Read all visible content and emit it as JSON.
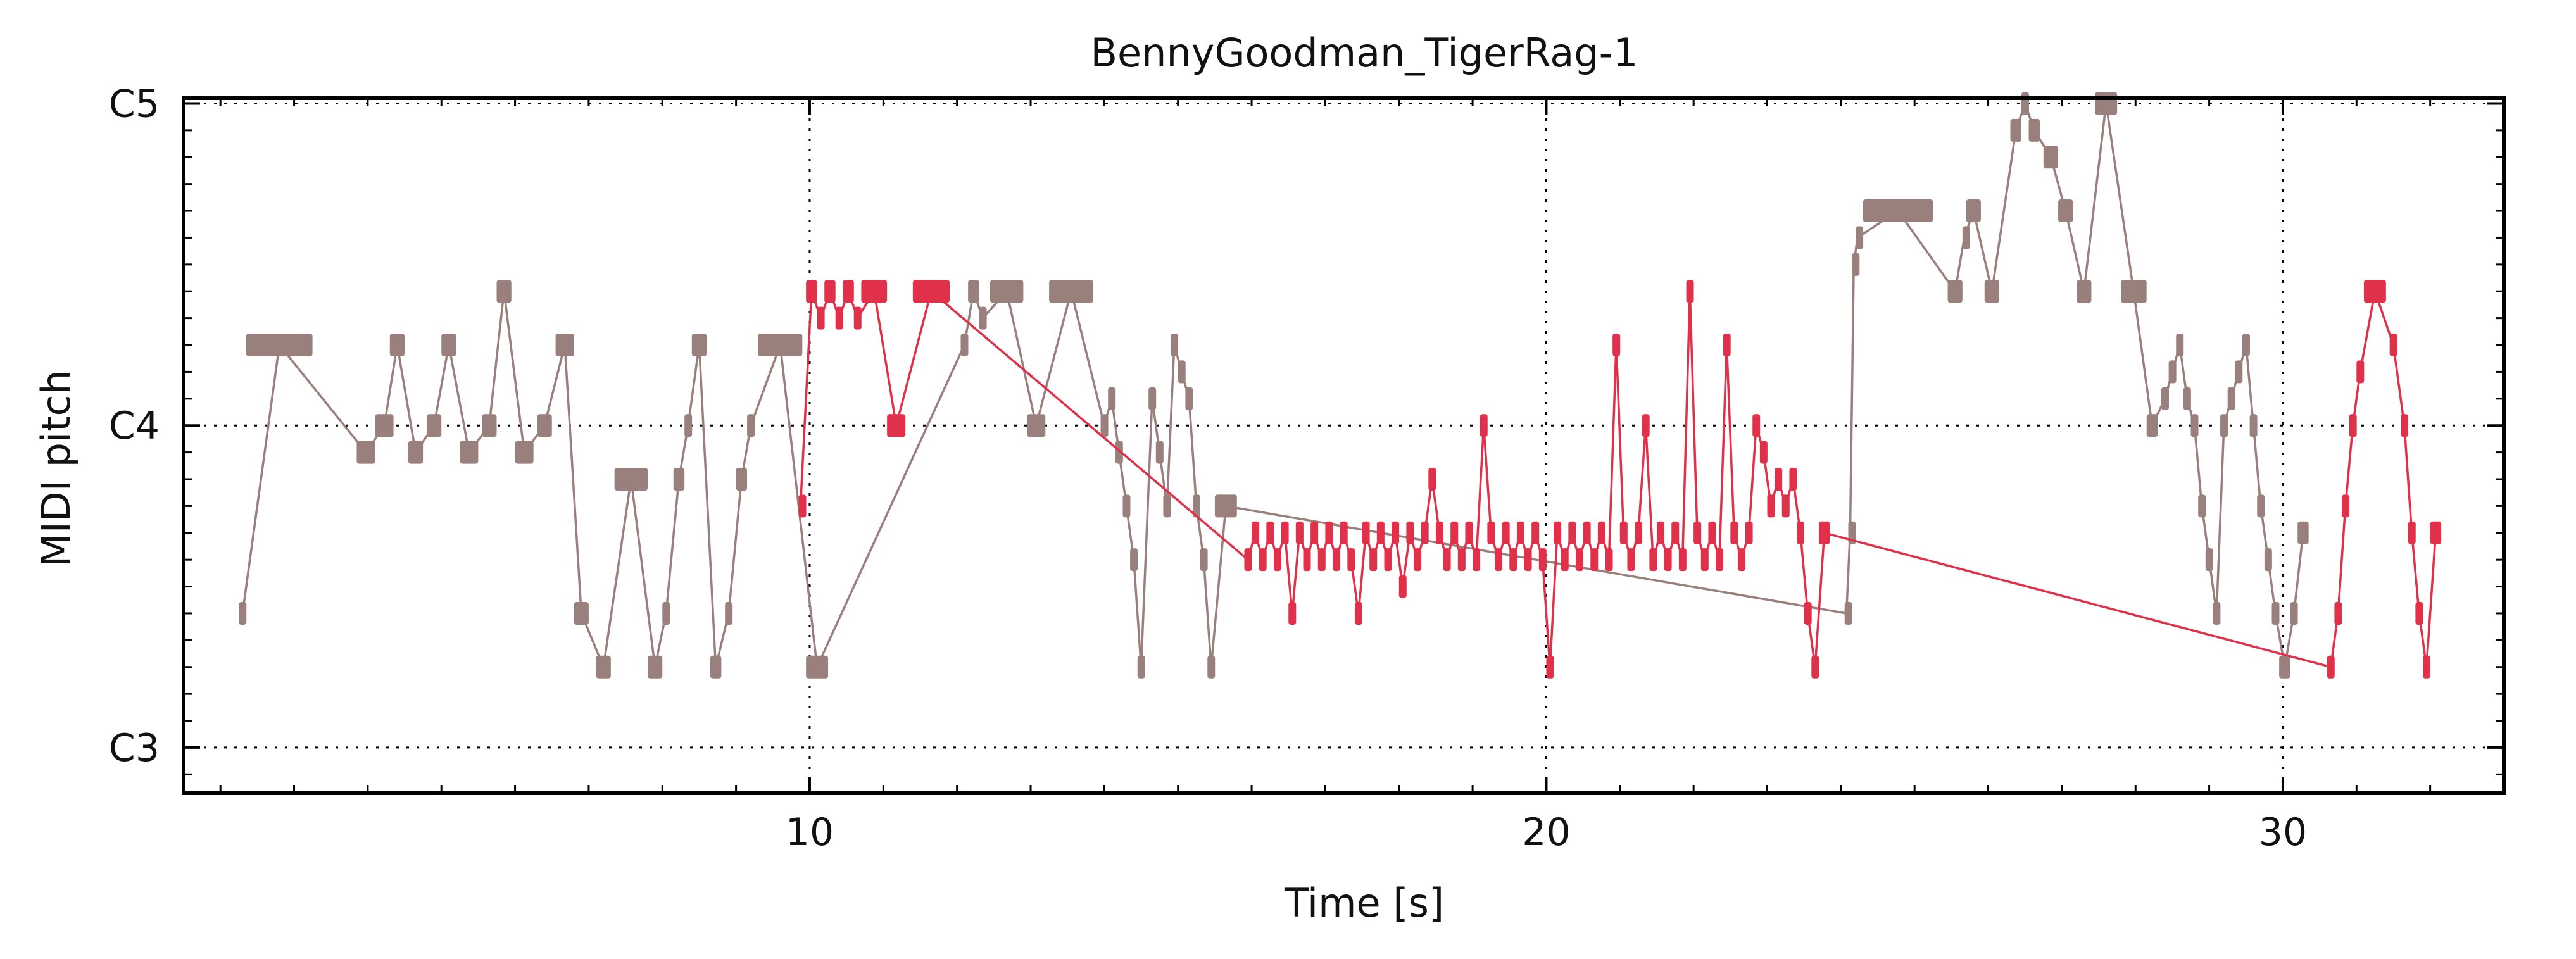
{
  "chart_data": {
    "type": "line",
    "title": "BennyGoodman_TigerRag-1",
    "xlabel": "Time [s]",
    "ylabel": "MIDI pitch",
    "xlim": [
      1.5,
      33.0
    ],
    "ylim": [
      46.3,
      72.2
    ],
    "x_ticks": [
      {
        "value": 10,
        "label": "10"
      },
      {
        "value": 20,
        "label": "20"
      },
      {
        "value": 30,
        "label": "30"
      }
    ],
    "y_ticks": [
      {
        "value": 48,
        "label": "C3"
      },
      {
        "value": 60,
        "label": "C4"
      },
      {
        "value": 72,
        "label": "C5"
      }
    ],
    "grid": true,
    "colors": {
      "series_gray": "#9a807c",
      "series_red": "#e0304a"
    },
    "series": [
      {
        "color": "gray",
        "notes": [
          [
            2.25,
            0.1,
            53
          ],
          [
            2.35,
            0.9,
            63
          ],
          [
            3.85,
            0.25,
            59
          ],
          [
            4.1,
            0.25,
            60
          ],
          [
            4.3,
            0.2,
            63
          ],
          [
            4.55,
            0.2,
            59
          ],
          [
            4.8,
            0.2,
            60
          ],
          [
            5.0,
            0.2,
            63
          ],
          [
            5.25,
            0.25,
            59
          ],
          [
            5.55,
            0.2,
            60
          ],
          [
            5.75,
            0.2,
            65
          ],
          [
            6.0,
            0.25,
            59
          ],
          [
            6.3,
            0.2,
            60
          ],
          [
            6.55,
            0.25,
            63
          ],
          [
            6.8,
            0.2,
            53
          ],
          [
            7.1,
            0.2,
            51
          ],
          [
            7.35,
            0.45,
            58
          ],
          [
            7.8,
            0.2,
            51
          ],
          [
            8.0,
            0.1,
            53
          ],
          [
            8.15,
            0.15,
            58
          ],
          [
            8.3,
            0.1,
            60
          ],
          [
            8.4,
            0.2,
            63
          ],
          [
            8.65,
            0.15,
            51
          ],
          [
            8.85,
            0.1,
            53
          ],
          [
            9.0,
            0.15,
            58
          ],
          [
            9.15,
            0.1,
            60
          ],
          [
            9.3,
            0.6,
            63
          ],
          [
            9.95,
            0.3,
            51
          ],
          [
            12.05,
            0.1,
            63
          ],
          [
            12.15,
            0.15,
            65
          ],
          [
            12.3,
            0.1,
            64
          ],
          [
            12.45,
            0.45,
            65
          ],
          [
            12.95,
            0.25,
            60
          ],
          [
            13.25,
            0.6,
            65
          ],
          [
            13.95,
            0.1,
            60
          ],
          [
            14.05,
            0.1,
            61
          ],
          [
            14.15,
            0.1,
            59
          ],
          [
            14.25,
            0.1,
            57
          ],
          [
            14.35,
            0.1,
            55
          ],
          [
            14.45,
            0.1,
            51
          ],
          [
            14.6,
            0.1,
            61
          ],
          [
            14.7,
            0.1,
            59
          ],
          [
            14.8,
            0.1,
            57
          ],
          [
            14.9,
            0.1,
            63
          ],
          [
            15.0,
            0.1,
            62
          ],
          [
            15.1,
            0.1,
            61
          ],
          [
            15.2,
            0.1,
            57
          ],
          [
            15.3,
            0.1,
            55
          ],
          [
            15.4,
            0.1,
            51
          ],
          [
            15.5,
            0.3,
            57
          ],
          [
            24.05,
            0.05,
            53
          ],
          [
            24.1,
            0.05,
            56
          ],
          [
            24.15,
            0.05,
            66
          ],
          [
            24.2,
            0.05,
            67
          ],
          [
            24.3,
            0.95,
            68
          ],
          [
            25.45,
            0.2,
            65
          ],
          [
            25.65,
            0.05,
            67
          ],
          [
            25.7,
            0.2,
            68
          ],
          [
            25.95,
            0.2,
            65
          ],
          [
            26.3,
            0.15,
            71
          ],
          [
            26.45,
            0.1,
            72
          ],
          [
            26.55,
            0.15,
            71
          ],
          [
            26.75,
            0.2,
            70
          ],
          [
            26.95,
            0.2,
            68
          ],
          [
            27.2,
            0.2,
            65
          ],
          [
            27.45,
            0.3,
            72
          ],
          [
            27.8,
            0.35,
            65
          ],
          [
            28.15,
            0.15,
            60
          ],
          [
            28.35,
            0.1,
            61
          ],
          [
            28.45,
            0.1,
            62
          ],
          [
            28.55,
            0.1,
            63
          ],
          [
            28.65,
            0.1,
            61
          ],
          [
            28.75,
            0.1,
            60
          ],
          [
            28.85,
            0.1,
            57
          ],
          [
            28.95,
            0.1,
            55
          ],
          [
            29.05,
            0.1,
            53
          ],
          [
            29.15,
            0.1,
            60
          ],
          [
            29.25,
            0.1,
            61
          ],
          [
            29.35,
            0.1,
            62
          ],
          [
            29.45,
            0.1,
            63
          ],
          [
            29.55,
            0.1,
            60
          ],
          [
            29.65,
            0.1,
            57
          ],
          [
            29.75,
            0.1,
            55
          ],
          [
            29.85,
            0.1,
            53
          ],
          [
            29.95,
            0.15,
            51
          ],
          [
            30.1,
            0.1,
            53
          ],
          [
            30.2,
            0.15,
            56
          ]
        ]
      },
      {
        "color": "red",
        "notes": [
          [
            9.85,
            0.05,
            57
          ],
          [
            9.95,
            0.15,
            65
          ],
          [
            10.1,
            0.1,
            64
          ],
          [
            10.2,
            0.15,
            65
          ],
          [
            10.35,
            0.1,
            64
          ],
          [
            10.45,
            0.15,
            65
          ],
          [
            10.6,
            0.1,
            64
          ],
          [
            10.7,
            0.35,
            65
          ],
          [
            11.05,
            0.25,
            60
          ],
          [
            11.4,
            0.5,
            65
          ],
          [
            15.9,
            0.1,
            55
          ],
          [
            16.0,
            0.1,
            56
          ],
          [
            16.1,
            0.1,
            55
          ],
          [
            16.2,
            0.1,
            56
          ],
          [
            16.3,
            0.1,
            55
          ],
          [
            16.4,
            0.1,
            56
          ],
          [
            16.5,
            0.1,
            53
          ],
          [
            16.6,
            0.1,
            56
          ],
          [
            16.7,
            0.1,
            55
          ],
          [
            16.8,
            0.1,
            56
          ],
          [
            16.9,
            0.1,
            55
          ],
          [
            17.0,
            0.1,
            56
          ],
          [
            17.1,
            0.1,
            55
          ],
          [
            17.2,
            0.1,
            56
          ],
          [
            17.3,
            0.1,
            55
          ],
          [
            17.4,
            0.1,
            53
          ],
          [
            17.5,
            0.1,
            56
          ],
          [
            17.6,
            0.1,
            55
          ],
          [
            17.7,
            0.1,
            56
          ],
          [
            17.8,
            0.1,
            55
          ],
          [
            17.9,
            0.1,
            56
          ],
          [
            18.0,
            0.1,
            54
          ],
          [
            18.1,
            0.1,
            56
          ],
          [
            18.2,
            0.1,
            55
          ],
          [
            18.3,
            0.1,
            56
          ],
          [
            18.4,
            0.1,
            58
          ],
          [
            18.5,
            0.1,
            56
          ],
          [
            18.6,
            0.1,
            55
          ],
          [
            18.7,
            0.1,
            56
          ],
          [
            18.8,
            0.1,
            55
          ],
          [
            18.9,
            0.1,
            56
          ],
          [
            19.0,
            0.1,
            55
          ],
          [
            19.1,
            0.1,
            60
          ],
          [
            19.2,
            0.1,
            56
          ],
          [
            19.3,
            0.1,
            55
          ],
          [
            19.4,
            0.1,
            56
          ],
          [
            19.5,
            0.1,
            55
          ],
          [
            19.6,
            0.1,
            56
          ],
          [
            19.7,
            0.1,
            55
          ],
          [
            19.8,
            0.1,
            56
          ],
          [
            19.9,
            0.1,
            55
          ],
          [
            20.0,
            0.1,
            51
          ],
          [
            20.1,
            0.1,
            56
          ],
          [
            20.2,
            0.1,
            55
          ],
          [
            20.3,
            0.1,
            56
          ],
          [
            20.4,
            0.1,
            55
          ],
          [
            20.5,
            0.1,
            56
          ],
          [
            20.6,
            0.1,
            55
          ],
          [
            20.7,
            0.1,
            56
          ],
          [
            20.8,
            0.1,
            55
          ],
          [
            20.9,
            0.1,
            63
          ],
          [
            21.0,
            0.1,
            56
          ],
          [
            21.1,
            0.1,
            55
          ],
          [
            21.2,
            0.1,
            56
          ],
          [
            21.3,
            0.1,
            60
          ],
          [
            21.4,
            0.1,
            55
          ],
          [
            21.5,
            0.1,
            56
          ],
          [
            21.6,
            0.1,
            55
          ],
          [
            21.7,
            0.1,
            56
          ],
          [
            21.8,
            0.1,
            55
          ],
          [
            21.9,
            0.1,
            65
          ],
          [
            22.0,
            0.1,
            56
          ],
          [
            22.1,
            0.1,
            55
          ],
          [
            22.2,
            0.1,
            56
          ],
          [
            22.3,
            0.1,
            55
          ],
          [
            22.4,
            0.1,
            63
          ],
          [
            22.5,
            0.1,
            56
          ],
          [
            22.6,
            0.1,
            55
          ],
          [
            22.7,
            0.1,
            56
          ],
          [
            22.8,
            0.1,
            60
          ],
          [
            22.9,
            0.1,
            59
          ],
          [
            23.0,
            0.1,
            57
          ],
          [
            23.1,
            0.1,
            58
          ],
          [
            23.2,
            0.1,
            57
          ],
          [
            23.3,
            0.1,
            58
          ],
          [
            23.4,
            0.1,
            56
          ],
          [
            23.5,
            0.1,
            53
          ],
          [
            23.6,
            0.1,
            51
          ],
          [
            23.7,
            0.15,
            56
          ],
          [
            30.6,
            0.1,
            51
          ],
          [
            30.7,
            0.1,
            53
          ],
          [
            30.8,
            0.1,
            57
          ],
          [
            30.9,
            0.1,
            60
          ],
          [
            31.0,
            0.1,
            62
          ],
          [
            31.1,
            0.3,
            65
          ],
          [
            31.45,
            0.1,
            63
          ],
          [
            31.6,
            0.1,
            60
          ],
          [
            31.7,
            0.1,
            56
          ],
          [
            31.8,
            0.1,
            53
          ],
          [
            31.9,
            0.1,
            51
          ],
          [
            32.0,
            0.15,
            56
          ]
        ]
      }
    ]
  }
}
